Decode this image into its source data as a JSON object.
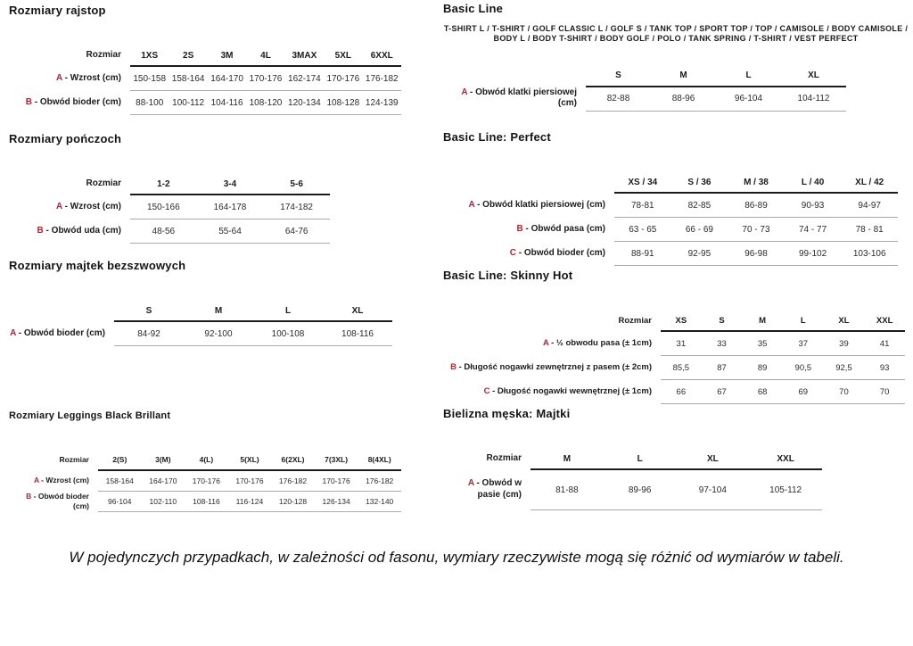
{
  "footnote": "W pojedynczych przypadkach, w zależności od fasonu, wymiary rzeczywiste mogą się różnić od wymiarów w tabeli.",
  "colors": {
    "accent_red": "#be1e2d",
    "rule_dark": "#1b1b1b",
    "rule_light": "#aaaaaa"
  },
  "sections": [
    {
      "title": "Rozmiary rajstop",
      "size_header_label": "Rozmiar",
      "columns": [
        "1XS",
        "2S",
        "3M",
        "4L",
        "3MAX",
        "5XL",
        "6XXL"
      ],
      "rows": [
        {
          "letter": "A",
          "label": "Wzrost (cm)",
          "values": [
            "150-158",
            "158-164",
            "164-170",
            "170-176",
            "162-174",
            "170-176",
            "176-182"
          ]
        },
        {
          "letter": "B",
          "label": "Obwód bioder (cm)",
          "values": [
            "88-100",
            "100-112",
            "104-116",
            "108-120",
            "120-134",
            "108-128",
            "124-139"
          ]
        }
      ]
    },
    {
      "title": "Rozmiary pończoch",
      "size_header_label": "Rozmiar",
      "columns": [
        "1-2",
        "3-4",
        "5-6"
      ],
      "rows": [
        {
          "letter": "A",
          "label": "Wzrost (cm)",
          "values": [
            "150-166",
            "164-178",
            "174-182"
          ]
        },
        {
          "letter": "B",
          "label": "Obwód uda (cm)",
          "values": [
            "48-56",
            "55-64",
            "64-76"
          ]
        }
      ]
    },
    {
      "title": "Rozmiary majtek bezszwowych",
      "size_header_label": "",
      "columns": [
        "S",
        "M",
        "L",
        "XL"
      ],
      "rows": [
        {
          "letter": "A",
          "label": "Obwód bioder (cm)",
          "values": [
            "84-92",
            "92-100",
            "100-108",
            "108-116"
          ]
        }
      ]
    },
    {
      "title": "Rozmiary Leggings Black Brillant",
      "size_header_label": "Rozmiar",
      "columns": [
        "2(S)",
        "3(M)",
        "4(L)",
        "5(XL)",
        "6(2XL)",
        "7(3XL)",
        "8(4XL)"
      ],
      "rows": [
        {
          "letter": "A",
          "label": "Wzrost (cm)",
          "values": [
            "158-164",
            "164-170",
            "170-176",
            "170-176",
            "176-182",
            "170-176",
            "176-182"
          ]
        },
        {
          "letter": "B",
          "label": "Obwód bioder (cm)",
          "values": [
            "96-104",
            "102-110",
            "108-116",
            "116-124",
            "120-128",
            "126-134",
            "132-140"
          ]
        }
      ]
    },
    {
      "title": "Basic Line",
      "note": "T-SHIRT L / T-SHIRT / GOLF CLASSIC L / GOLF S / TANK TOP / SPORT TOP / TOP / CAMISOLE / BODY CAMISOLE / BODY L / BODY T-SHIRT / BODY GOLF / POLO / TANK SPRING / T-SHIRT / VEST PERFECT",
      "size_header_label": "",
      "columns": [
        "S",
        "M",
        "L",
        "XL"
      ],
      "rows": [
        {
          "letter": "A",
          "label": "Obwód klatki piersiowej (cm)",
          "values": [
            "82-88",
            "88-96",
            "96-104",
            "104-112"
          ]
        }
      ]
    },
    {
      "title": "Basic Line: Perfect",
      "size_header_label": "",
      "columns": [
        "XS / 34",
        "S / 36",
        "M / 38",
        "L / 40",
        "XL / 42"
      ],
      "rows": [
        {
          "letter": "A",
          "label": "Obwód klatki piersiowej (cm)",
          "values": [
            "78-81",
            "82-85",
            "86-89",
            "90-93",
            "94-97"
          ]
        },
        {
          "letter": "B",
          "label": "Obwód pasa (cm)",
          "values": [
            "63 - 65",
            "66 - 69",
            "70 - 73",
            "74 - 77",
            "78 - 81"
          ]
        },
        {
          "letter": "C",
          "label": "Obwód bioder (cm)",
          "values": [
            "88-91",
            "92-95",
            "96-98",
            "99-102",
            "103-106"
          ]
        }
      ]
    },
    {
      "title": "Basic Line: Skinny Hot",
      "size_header_label": "Rozmiar",
      "columns": [
        "XS",
        "S",
        "M",
        "L",
        "XL",
        "XXL"
      ],
      "rows": [
        {
          "letter": "A",
          "label": "½ obwodu pasa (± 1cm)",
          "values": [
            "31",
            "33",
            "35",
            "37",
            "39",
            "41"
          ]
        },
        {
          "letter": "B",
          "label": "Długość nogawki zewnętrznej z pasem (± 2cm)",
          "values": [
            "85,5",
            "87",
            "89",
            "90,5",
            "92,5",
            "93"
          ]
        },
        {
          "letter": "C",
          "label": "Długość nogawki wewnętrznej (± 1cm)",
          "values": [
            "66",
            "67",
            "68",
            "69",
            "70",
            "70"
          ]
        }
      ]
    },
    {
      "title": "Bielizna męska: Majtki",
      "size_header_label": "Rozmiar",
      "columns": [
        "M",
        "L",
        "XL",
        "XXL"
      ],
      "rows": [
        {
          "letter": "A",
          "label": "Obwód w pasie (cm)",
          "values": [
            "81-88",
            "89-96",
            "97-104",
            "105-112"
          ]
        }
      ]
    }
  ]
}
